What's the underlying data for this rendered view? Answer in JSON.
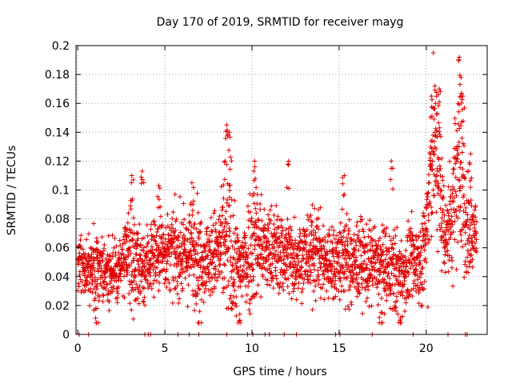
{
  "chart_data": {
    "type": "scatter",
    "title": "Day 170 of 2019, SRMTID for receiver mayg",
    "xlabel": "GPS time / hours",
    "ylabel": "SRMTID / TECUs",
    "xlim": [
      -0.1,
      23.5
    ],
    "ylim": [
      0,
      0.2
    ],
    "x_ticks": [
      0,
      5,
      10,
      15,
      20
    ],
    "x_tick_labels": [
      "0",
      "5",
      "10",
      "15",
      "20"
    ],
    "y_ticks": [
      0,
      0.02,
      0.04,
      0.06,
      0.08,
      0.1,
      0.12,
      0.14,
      0.16,
      0.18,
      0.2
    ],
    "y_tick_labels": [
      "0",
      "0.02",
      "0.04",
      "0.06",
      "0.08",
      "0.1",
      "0.12",
      "0.14",
      "0.16",
      "0.18",
      "0.2"
    ],
    "grid": true,
    "marker": "+",
    "color": "#e00000",
    "sample_interval_hours": 0.0167,
    "zero_value_times": [
      0.08,
      0.62,
      3.85,
      4.05,
      4.18,
      5.75,
      6.4,
      6.95,
      8.55,
      9.75,
      10.05,
      10.75,
      11.0,
      11.85,
      12.55,
      14.8,
      15.05,
      16.9,
      19.25,
      21.25,
      22.25,
      22.35
    ],
    "series": [
      {
        "name": "SRMTID",
        "x": [
          0.0,
          0.25,
          0.5,
          0.75,
          1.0,
          1.25,
          1.5,
          1.75,
          2.0,
          2.25,
          2.5,
          2.75,
          3.0,
          3.25,
          3.5,
          3.75,
          4.0,
          4.25,
          4.5,
          4.75,
          5.0,
          5.25,
          5.5,
          5.75,
          6.0,
          6.25,
          6.5,
          6.75,
          7.0,
          7.25,
          7.5,
          7.75,
          8.0,
          8.25,
          8.5,
          8.75,
          9.0,
          9.25,
          9.5,
          9.75,
          10.0,
          10.25,
          10.5,
          10.75,
          11.0,
          11.25,
          11.5,
          11.75,
          12.0,
          12.25,
          12.5,
          12.75,
          13.0,
          13.25,
          13.5,
          13.75,
          14.0,
          14.25,
          14.5,
          14.75,
          15.0,
          15.25,
          15.5,
          15.75,
          16.0,
          16.25,
          16.5,
          16.75,
          17.0,
          17.25,
          17.5,
          17.75,
          18.0,
          18.25,
          18.5,
          18.75,
          19.0,
          19.25,
          19.5,
          19.75,
          20.0,
          20.25,
          20.5,
          20.75,
          21.0,
          21.25,
          21.5,
          21.75,
          22.0,
          22.25,
          22.5,
          22.75,
          22.9
        ],
        "y_mean": [
          0.05,
          0.048,
          0.045,
          0.043,
          0.044,
          0.046,
          0.044,
          0.043,
          0.045,
          0.046,
          0.047,
          0.05,
          0.055,
          0.052,
          0.048,
          0.046,
          0.05,
          0.054,
          0.056,
          0.058,
          0.058,
          0.056,
          0.057,
          0.056,
          0.055,
          0.054,
          0.057,
          0.06,
          0.056,
          0.052,
          0.053,
          0.055,
          0.056,
          0.058,
          0.06,
          0.062,
          0.048,
          0.045,
          0.05,
          0.055,
          0.065,
          0.068,
          0.062,
          0.058,
          0.057,
          0.06,
          0.058,
          0.056,
          0.055,
          0.054,
          0.053,
          0.055,
          0.054,
          0.056,
          0.058,
          0.057,
          0.053,
          0.05,
          0.049,
          0.05,
          0.052,
          0.054,
          0.05,
          0.047,
          0.05,
          0.052,
          0.05,
          0.048,
          0.05,
          0.047,
          0.046,
          0.044,
          0.045,
          0.043,
          0.041,
          0.042,
          0.048,
          0.05,
          0.051,
          0.052,
          0.065,
          0.12,
          0.125,
          0.11,
          0.075,
          0.07,
          0.085,
          0.11,
          0.12,
          0.08,
          0.07,
          0.075,
          0.065
        ],
        "y_spread": [
          0.012,
          0.012,
          0.013,
          0.013,
          0.013,
          0.014,
          0.014,
          0.014,
          0.013,
          0.013,
          0.014,
          0.016,
          0.02,
          0.018,
          0.016,
          0.015,
          0.015,
          0.016,
          0.015,
          0.015,
          0.014,
          0.014,
          0.015,
          0.016,
          0.016,
          0.015,
          0.018,
          0.02,
          0.016,
          0.014,
          0.015,
          0.016,
          0.018,
          0.02,
          0.025,
          0.03,
          0.02,
          0.016,
          0.018,
          0.022,
          0.025,
          0.026,
          0.02,
          0.017,
          0.016,
          0.016,
          0.016,
          0.016,
          0.016,
          0.016,
          0.015,
          0.015,
          0.015,
          0.016,
          0.017,
          0.016,
          0.016,
          0.015,
          0.015,
          0.015,
          0.016,
          0.018,
          0.016,
          0.015,
          0.016,
          0.016,
          0.015,
          0.015,
          0.016,
          0.016,
          0.015,
          0.015,
          0.016,
          0.016,
          0.015,
          0.014,
          0.015,
          0.015,
          0.015,
          0.016,
          0.025,
          0.03,
          0.03,
          0.03,
          0.02,
          0.02,
          0.025,
          0.035,
          0.03,
          0.025,
          0.02,
          0.02,
          0.015
        ],
        "y_peaks": [
          {
            "x": 3.1,
            "y": 0.11
          },
          {
            "x": 3.7,
            "y": 0.113
          },
          {
            "x": 4.65,
            "y": 0.103
          },
          {
            "x": 6.55,
            "y": 0.105
          },
          {
            "x": 8.55,
            "y": 0.145
          },
          {
            "x": 8.7,
            "y": 0.14
          },
          {
            "x": 8.45,
            "y": 0.12
          },
          {
            "x": 10.15,
            "y": 0.12
          },
          {
            "x": 12.1,
            "y": 0.12
          },
          {
            "x": 15.3,
            "y": 0.11
          },
          {
            "x": 18.0,
            "y": 0.12
          },
          {
            "x": 20.3,
            "y": 0.165
          },
          {
            "x": 20.5,
            "y": 0.172
          },
          {
            "x": 20.75,
            "y": 0.17
          },
          {
            "x": 21.9,
            "y": 0.192
          },
          {
            "x": 22.0,
            "y": 0.178
          },
          {
            "x": 22.1,
            "y": 0.165
          },
          {
            "x": 22.55,
            "y": 0.125
          },
          {
            "x": 18.5,
            "y": 0.01
          },
          {
            "x": 17.4,
            "y": 0.015
          },
          {
            "x": 9.3,
            "y": 0.014
          },
          {
            "x": 7.0,
            "y": 0.016
          },
          {
            "x": 1.1,
            "y": 0.018
          }
        ]
      }
    ]
  }
}
